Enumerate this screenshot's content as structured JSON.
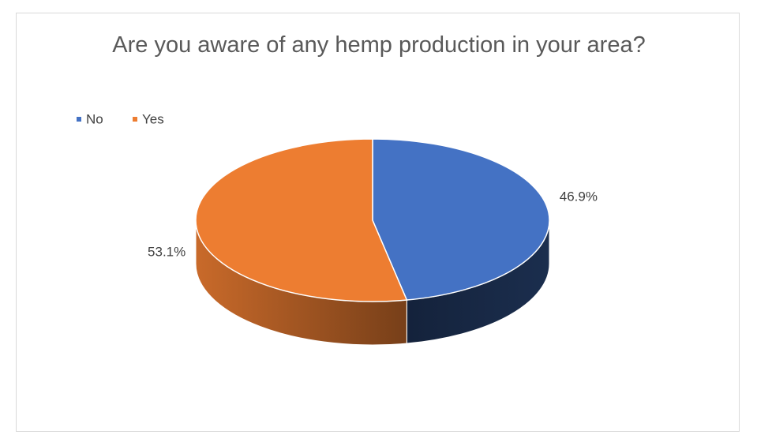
{
  "chart_data": {
    "type": "pie",
    "title": "Are you aware of any hemp production in your area?",
    "categories": [
      "No",
      "Yes"
    ],
    "values": [
      46.9,
      53.1
    ],
    "value_labels": [
      "46.9%",
      "53.1%"
    ],
    "colors": [
      "#4472c4",
      "#ed7d31"
    ],
    "legend": "top-left"
  }
}
